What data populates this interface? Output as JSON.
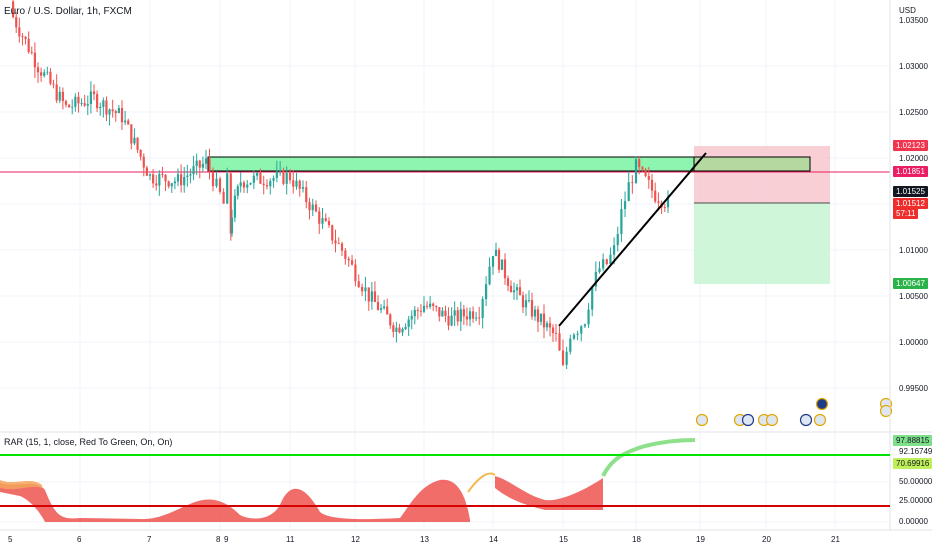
{
  "chart": {
    "title": "Euro / U.S. Dollar, 1h, FXCM",
    "scale_unit": "USD",
    "price_ticks": [
      "1.03500",
      "1.03000",
      "1.02500",
      "1.02000",
      "1.01000",
      "1.00500",
      "1.00000",
      "0.99500"
    ],
    "badges": {
      "target_stop": "1.02123",
      "level_line": "1.01851",
      "last_open": "1.01525",
      "last_price": "1.01512",
      "countdown": "57:11",
      "take_profit": "1.00647"
    },
    "x_ticks": [
      "5",
      "6",
      "7",
      "8",
      "9",
      "11",
      "12",
      "13",
      "14",
      "15",
      "18",
      "19",
      "20",
      "21"
    ],
    "colors": {
      "up": "#26a69a",
      "down": "#ef5350",
      "zone_fill": "#8ef5b0",
      "level_line": "#e91e63",
      "stop_zone": "#f8c7cf",
      "profit_zone": "#c8f5d2",
      "trendline": "#000000"
    },
    "event_icons": [
      "us-flag-icon",
      "us-flag-icon",
      "us-flag-icon",
      "us-flag-icon",
      "us-flag-icon",
      "us-flag-icon",
      "info-icon",
      "us-flag-icon"
    ]
  },
  "oscillator": {
    "title": "RAR (15, 1, close, Red To Green, On, On)",
    "ticks": [
      "50.00000",
      "25.00000",
      "0.00000"
    ],
    "badges": {
      "value_top": "97.88815",
      "value_mid": "92.16749",
      "upper_band": "70.69916"
    },
    "colors": {
      "upper_band": "#00e500",
      "lower_band": "#d50000"
    }
  },
  "chart_data": {
    "type": "candlestick",
    "title": "Euro / U.S. Dollar, 1h, FXCM",
    "ylabel": "USD",
    "ylim": [
      0.9925,
      1.0375
    ],
    "levels": {
      "resistance_zone": [
        1.0185,
        1.02
      ],
      "horizontal_line": 1.01851,
      "stop_loss": 1.02123,
      "entry": 1.01512,
      "take_profit": 1.00647
    },
    "trendline": [
      [
        15.0,
        1.0018
      ],
      [
        19.1,
        1.0197
      ]
    ],
    "closes": [
      {
        "x": 5.0,
        "y": 1.036
      },
      {
        "x": 5.4,
        "y": 1.03
      },
      {
        "x": 5.8,
        "y": 1.0255
      },
      {
        "x": 6.2,
        "y": 1.0265
      },
      {
        "x": 6.6,
        "y": 1.0245
      },
      {
        "x": 7.0,
        "y": 1.018
      },
      {
        "x": 7.4,
        "y": 1.0175
      },
      {
        "x": 7.8,
        "y": 1.0195
      },
      {
        "x": 8.0,
        "y": 1.016
      },
      {
        "x": 8.3,
        "y": 1.015
      },
      {
        "x": 8.6,
        "y": 1.0175
      },
      {
        "x": 8.9,
        "y": 1.012
      },
      {
        "x": 9.0,
        "y": 1.014
      },
      {
        "x": 9.3,
        "y": 1.0175
      },
      {
        "x": 11.0,
        "y": 1.018
      },
      {
        "x": 11.4,
        "y": 1.014
      },
      {
        "x": 11.8,
        "y": 1.01
      },
      {
        "x": 12.2,
        "y": 1.005
      },
      {
        "x": 12.6,
        "y": 1.0015
      },
      {
        "x": 13.0,
        "y": 1.004
      },
      {
        "x": 13.4,
        "y": 1.0025
      },
      {
        "x": 13.8,
        "y": 1.0035
      },
      {
        "x": 14.0,
        "y": 1.01
      },
      {
        "x": 14.3,
        "y": 1.0055
      },
      {
        "x": 14.6,
        "y": 1.003
      },
      {
        "x": 14.9,
        "y": 1.0005
      },
      {
        "x": 15.0,
        "y": 0.997
      },
      {
        "x": 15.3,
        "y": 1.001
      },
      {
        "x": 15.6,
        "y": 1.0015
      },
      {
        "x": 15.9,
        "y": 1.0025
      },
      {
        "x": 16.2,
        "y": 1.006
      },
      {
        "x": 16.5,
        "y": 1.008
      },
      {
        "x": 16.8,
        "y": 1.0085
      },
      {
        "x": 17.1,
        "y": 1.01
      },
      {
        "x": 17.4,
        "y": 1.014
      },
      {
        "x": 17.7,
        "y": 1.017
      },
      {
        "x": 18.0,
        "y": 1.019
      },
      {
        "x": 18.3,
        "y": 1.016
      },
      {
        "x": 18.5,
        "y": 1.0151
      }
    ]
  }
}
